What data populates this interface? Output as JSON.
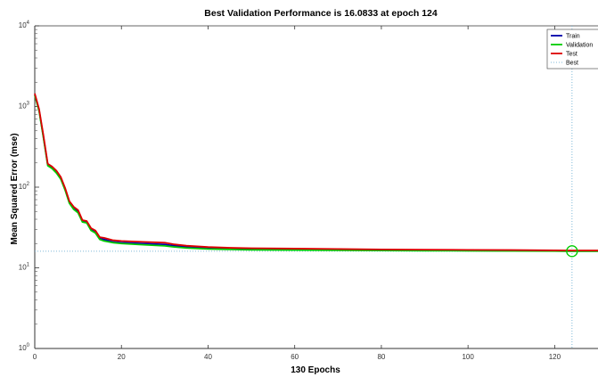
{
  "chart_data": {
    "type": "line",
    "title": "Best Validation Performance is 16.0833 at epoch 124",
    "xlabel": "130 Epochs",
    "ylabel": "Mean Squared Error  (mse)",
    "xlim": [
      0,
      130
    ],
    "ylim": [
      1,
      10000
    ],
    "yscale": "log",
    "x_ticks": [
      0,
      20,
      40,
      60,
      80,
      100,
      120
    ],
    "y_ticks": [
      {
        "value": 1,
        "base": "10",
        "exp": "0"
      },
      {
        "value": 10,
        "base": "10",
        "exp": "1"
      },
      {
        "value": 100,
        "base": "10",
        "exp": "2"
      },
      {
        "value": 1000,
        "base": "10",
        "exp": "3"
      },
      {
        "value": 10000,
        "base": "10",
        "exp": "4"
      }
    ],
    "grid": false,
    "legend_position": "top-right",
    "series": [
      {
        "name": "Train",
        "color": "#0000aa",
        "points": [
          [
            0,
            1400
          ],
          [
            1,
            900
          ],
          [
            2,
            420
          ],
          [
            3,
            190
          ],
          [
            4,
            175
          ],
          [
            5,
            155
          ],
          [
            6,
            130
          ],
          [
            7,
            95
          ],
          [
            8,
            65
          ],
          [
            9,
            55
          ],
          [
            10,
            50
          ],
          [
            11,
            38
          ],
          [
            12,
            37
          ],
          [
            13,
            30
          ],
          [
            14,
            28
          ],
          [
            15,
            23
          ],
          [
            16,
            22.5
          ],
          [
            18,
            21
          ],
          [
            20,
            20.5
          ],
          [
            25,
            20
          ],
          [
            30,
            19.5
          ],
          [
            32,
            18.8
          ],
          [
            35,
            18.2
          ],
          [
            40,
            17.6
          ],
          [
            45,
            17.3
          ],
          [
            50,
            17.1
          ],
          [
            60,
            16.9
          ],
          [
            70,
            16.8
          ],
          [
            80,
            16.6
          ],
          [
            90,
            16.5
          ],
          [
            100,
            16.4
          ],
          [
            110,
            16.3
          ],
          [
            120,
            16.2
          ],
          [
            124,
            16.1
          ],
          [
            130,
            16.1
          ]
        ]
      },
      {
        "name": "Validation",
        "color": "#00cc00",
        "points": [
          [
            0,
            1380
          ],
          [
            1,
            880
          ],
          [
            2,
            410
          ],
          [
            3,
            185
          ],
          [
            4,
            170
          ],
          [
            5,
            150
          ],
          [
            6,
            126
          ],
          [
            7,
            92
          ],
          [
            8,
            63
          ],
          [
            9,
            53
          ],
          [
            10,
            48
          ],
          [
            11,
            37
          ],
          [
            12,
            36
          ],
          [
            13,
            29
          ],
          [
            14,
            27
          ],
          [
            15,
            22.5
          ],
          [
            16,
            21.5
          ],
          [
            18,
            20.5
          ],
          [
            20,
            20
          ],
          [
            25,
            19.3
          ],
          [
            30,
            18.7
          ],
          [
            32,
            18.2
          ],
          [
            35,
            17.6
          ],
          [
            40,
            17.1
          ],
          [
            45,
            16.9
          ],
          [
            50,
            16.7
          ],
          [
            60,
            16.6
          ],
          [
            70,
            16.5
          ],
          [
            80,
            16.4
          ],
          [
            90,
            16.3
          ],
          [
            100,
            16.25
          ],
          [
            110,
            16.2
          ],
          [
            120,
            16.12
          ],
          [
            124,
            16.0833
          ],
          [
            130,
            16.09
          ]
        ]
      },
      {
        "name": "Test",
        "color": "#dd0000",
        "points": [
          [
            0,
            1450
          ],
          [
            1,
            930
          ],
          [
            2,
            440
          ],
          [
            3,
            195
          ],
          [
            4,
            180
          ],
          [
            5,
            160
          ],
          [
            6,
            134
          ],
          [
            7,
            98
          ],
          [
            8,
            67
          ],
          [
            9,
            57
          ],
          [
            10,
            52
          ],
          [
            11,
            39
          ],
          [
            12,
            38
          ],
          [
            13,
            31
          ],
          [
            14,
            29
          ],
          [
            15,
            24
          ],
          [
            16,
            23.5
          ],
          [
            18,
            22
          ],
          [
            20,
            21.5
          ],
          [
            25,
            21
          ],
          [
            30,
            20.5
          ],
          [
            32,
            19.6
          ],
          [
            35,
            18.8
          ],
          [
            40,
            18.1
          ],
          [
            45,
            17.7
          ],
          [
            50,
            17.5
          ],
          [
            60,
            17.3
          ],
          [
            70,
            17.1
          ],
          [
            80,
            16.9
          ],
          [
            90,
            16.8
          ],
          [
            100,
            16.7
          ],
          [
            110,
            16.6
          ],
          [
            120,
            16.45
          ],
          [
            124,
            16.4
          ],
          [
            130,
            16.4
          ]
        ]
      },
      {
        "name": "Best",
        "color": "#7fb8d8",
        "style": "dotted"
      }
    ],
    "best": {
      "epoch": 124,
      "value": 16.0833
    }
  }
}
